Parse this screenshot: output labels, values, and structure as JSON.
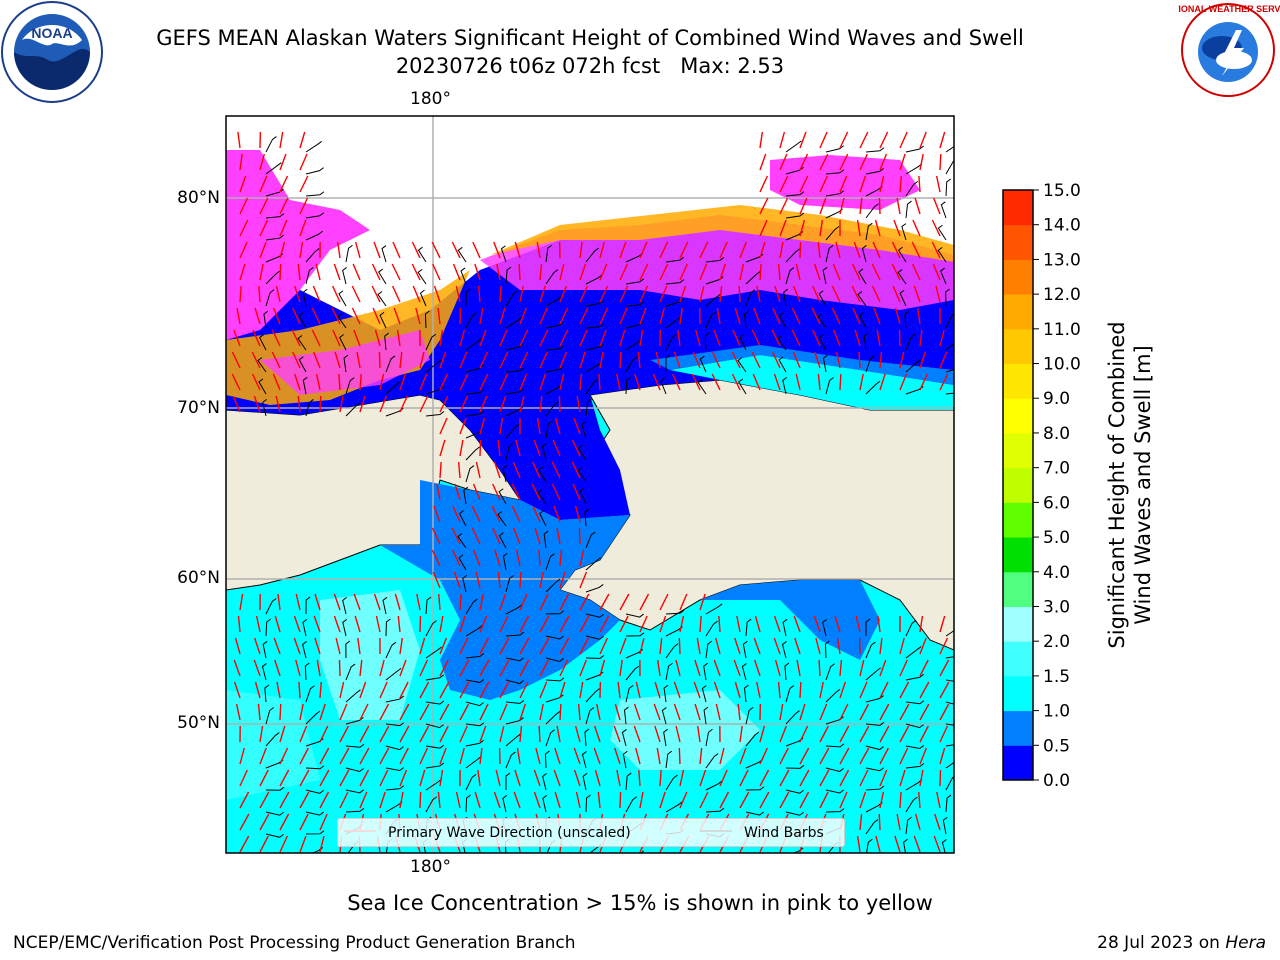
{
  "header": {
    "title_line1": "GEFS MEAN Alaskan Waters Significant Height of Combined Wind Waves and Swell",
    "title_line2": "20230726 t06z 072h fcst   Max: 2.53"
  },
  "logos": {
    "left": {
      "icon": "noaa-logo-icon",
      "text": "NOAA"
    },
    "right": {
      "icon": "nws-logo-icon",
      "text": "NATIONAL WEATHER SERVICE"
    }
  },
  "map": {
    "lon_label_top": "180°",
    "lon_label_bottom": "180°",
    "lat_labels": [
      "80°N",
      "70°N",
      "60°N",
      "50°N"
    ],
    "colors": {
      "land": "#efecdb",
      "open_water_low": "#0000ff",
      "water_mid": "#0080ff",
      "water_1_1.5": "#00ffff",
      "water_1.5_2": "#40ffff",
      "ice_pink": "#ff40ff",
      "ice_orange": "#ffaa00",
      "wave_arrow": "#ff0000",
      "wind_barb": "#000000"
    },
    "legend": {
      "wave_direction": "Primary Wave Direction (unscaled)",
      "wind_barbs": "Wind Barbs"
    }
  },
  "colorbar": {
    "label": "Significant Height of Combined Wind Waves and Swell [m]",
    "label_line1": "Significant Height of Combined",
    "label_line2": "Wind Waves and Swell [m]",
    "ticks": [
      "0.0",
      "0.5",
      "1.0",
      "1.5",
      "2.0",
      "3.0",
      "4.0",
      "5.0",
      "6.0",
      "7.0",
      "8.0",
      "9.0",
      "10.0",
      "11.0",
      "12.0",
      "13.0",
      "14.0",
      "15.0"
    ],
    "colors": [
      "#0000ff",
      "#0080ff",
      "#00ffff",
      "#40ffff",
      "#a0ffff",
      "#50ff80",
      "#00e000",
      "#60ff00",
      "#c0ff00",
      "#e0ff00",
      "#ffff00",
      "#ffe600",
      "#ffc800",
      "#ffaa00",
      "#ff8000",
      "#ff5500",
      "#ff2a00"
    ]
  },
  "subtitle": "Sea Ice Concentration > 15% is shown in pink to yellow",
  "footer": {
    "left": "NCEP/EMC/Verification Post Processing Product Generation Branch",
    "right_date": "28 Jul 2023 on ",
    "right_host": "Hera"
  }
}
